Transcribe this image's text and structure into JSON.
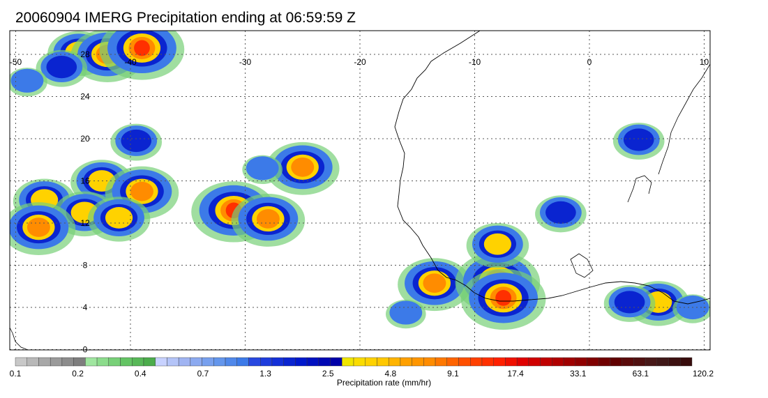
{
  "title": "20060904 IMERG Precipitation ending at 06:59:59 Z",
  "map": {
    "lon_range": [
      -50,
      10
    ],
    "lat_range": [
      -1,
      30
    ],
    "lon_ticks": [
      -50,
      -40,
      -30,
      -20,
      -10,
      0,
      10
    ],
    "lon_tick_labels": [
      "-50",
      "-40",
      "-30",
      "-20",
      "-10",
      "0",
      "10"
    ],
    "lat_ticks": [
      28,
      24,
      20,
      16,
      12,
      8,
      4,
      0
    ],
    "lat_tick_labels": [
      "28",
      "24",
      "20",
      "16",
      "12",
      "8",
      "4",
      "0"
    ],
    "grid": "dotted"
  },
  "colorbar": {
    "title": "Precipitation rate (mm/hr)",
    "colors": [
      "#c8c8c8",
      "#b8b8b8",
      "#a8a8a8",
      "#9a9a9a",
      "#8c8c8c",
      "#7e7e7e",
      "#a0e6a0",
      "#8cdc8c",
      "#78d078",
      "#64c464",
      "#58b858",
      "#4cac4c",
      "#c8d2ff",
      "#b4c4f8",
      "#a0b4f2",
      "#8caaf0",
      "#78a0ee",
      "#6496ec",
      "#5088ea",
      "#3c7ae8",
      "#2848e0",
      "#1e3cdc",
      "#1430d8",
      "#0a24d0",
      "#0018cc",
      "#0010c0",
      "#0008b4",
      "#0000a8",
      "#f0e600",
      "#fadc00",
      "#ffd200",
      "#ffc800",
      "#ffb400",
      "#ffa000",
      "#ff9600",
      "#ff8c00",
      "#ff7800",
      "#ff6400",
      "#ff5000",
      "#ff4000",
      "#ff3000",
      "#ff2000",
      "#f01000",
      "#e00000",
      "#d00000",
      "#c00000",
      "#b00000",
      "#a00000",
      "#900000",
      "#800000",
      "#700000",
      "#600000",
      "#5a0a0a",
      "#501010",
      "#481818",
      "#401818",
      "#3c1010",
      "#380c0c"
    ],
    "labels": [
      "0.1",
      "0.2",
      "0.4",
      "0.7",
      "1.3",
      "2.5",
      "4.8",
      "9.1",
      "17.4",
      "33.1",
      "63.1",
      "120.2"
    ]
  },
  "precip_cells": [
    {
      "lon": -44.5,
      "lat": 28.2,
      "intensity": 4
    },
    {
      "lon": -42.0,
      "lat": 28.0,
      "intensity": 5
    },
    {
      "lon": -39.0,
      "lat": 28.6,
      "intensity": 6
    },
    {
      "lon": -46.0,
      "lat": 26.8,
      "intensity": 3
    },
    {
      "lon": -49.0,
      "lat": 25.5,
      "intensity": 2
    },
    {
      "lon": -39.5,
      "lat": 19.8,
      "intensity": 3
    },
    {
      "lon": -42.5,
      "lat": 16.0,
      "intensity": 4
    },
    {
      "lon": -39.0,
      "lat": 15.0,
      "intensity": 5
    },
    {
      "lon": -47.5,
      "lat": 14.2,
      "intensity": 4
    },
    {
      "lon": -44.0,
      "lat": 13.0,
      "intensity": 4
    },
    {
      "lon": -41.0,
      "lat": 12.5,
      "intensity": 4
    },
    {
      "lon": -48.0,
      "lat": 11.6,
      "intensity": 5
    },
    {
      "lon": -31.0,
      "lat": 13.2,
      "intensity": 6
    },
    {
      "lon": -28.0,
      "lat": 12.4,
      "intensity": 5
    },
    {
      "lon": -25.0,
      "lat": 17.3,
      "intensity": 5
    },
    {
      "lon": -28.5,
      "lat": 17.2,
      "intensity": 2
    },
    {
      "lon": -13.5,
      "lat": 6.3,
      "intensity": 5
    },
    {
      "lon": -8.0,
      "lat": 6.5,
      "intensity": 6
    },
    {
      "lon": -7.5,
      "lat": 4.9,
      "intensity": 6
    },
    {
      "lon": -8.0,
      "lat": 10.0,
      "intensity": 4
    },
    {
      "lon": -16.0,
      "lat": 3.5,
      "intensity": 2
    },
    {
      "lon": -2.5,
      "lat": 13.0,
      "intensity": 3
    },
    {
      "lon": 4.3,
      "lat": 19.9,
      "intensity": 3
    },
    {
      "lon": 6.0,
      "lat": 4.5,
      "intensity": 4
    },
    {
      "lon": 3.5,
      "lat": 4.5,
      "intensity": 3
    },
    {
      "lon": 9.0,
      "lat": 4.0,
      "intensity": 2
    }
  ]
}
